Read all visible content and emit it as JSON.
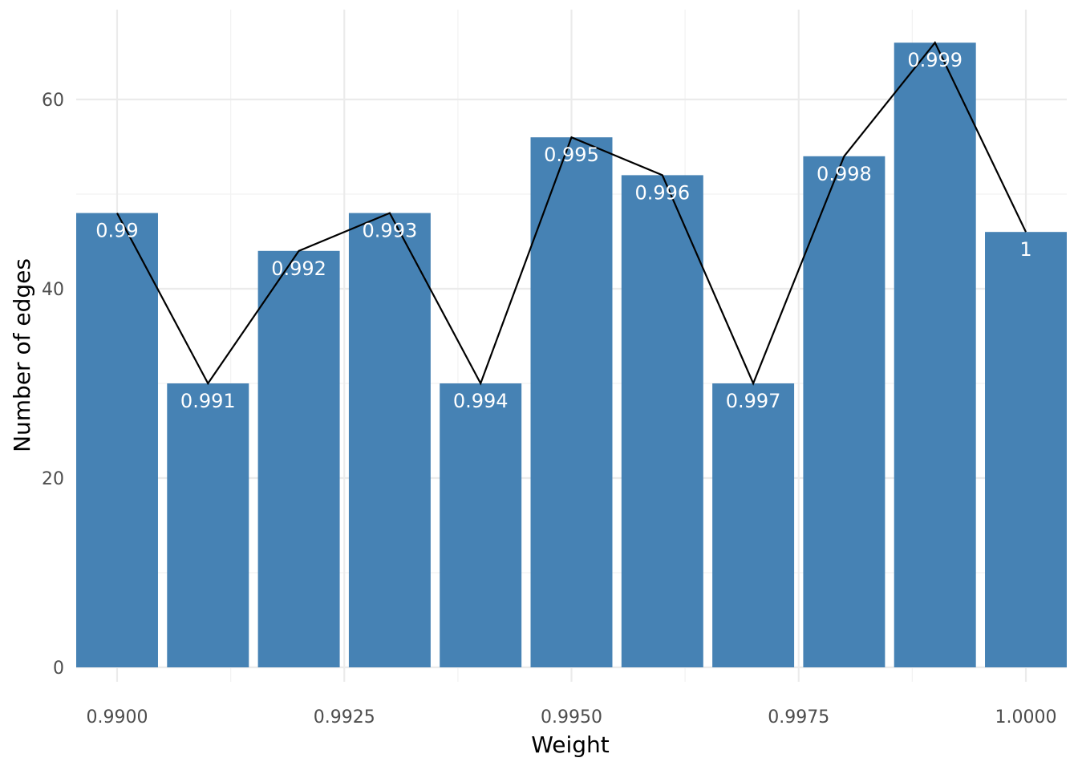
{
  "chart_data": {
    "type": "bar",
    "x": [
      0.99,
      0.991,
      0.992,
      0.993,
      0.994,
      0.995,
      0.996,
      0.997,
      0.998,
      0.999,
      1.0
    ],
    "values": [
      48,
      30,
      44,
      48,
      30,
      56,
      52,
      30,
      54,
      66,
      46
    ],
    "bar_labels": [
      "0.99",
      "0.991",
      "0.992",
      "0.993",
      "0.994",
      "0.995",
      "0.996",
      "0.997",
      "0.998",
      "0.999",
      "1"
    ],
    "overlay_line": {
      "type": "line",
      "values": [
        48,
        30,
        44,
        48,
        30,
        56,
        52,
        30,
        54,
        66,
        46
      ],
      "color": "#000000"
    },
    "xlabel": "Weight",
    "ylabel": "Number of edges",
    "x_ticks": [
      0.99,
      0.9925,
      0.995,
      0.9975,
      1.0
    ],
    "x_tick_labels": [
      "0.9900",
      "0.9925",
      "0.9950",
      "0.9975",
      "1.0000"
    ],
    "y_ticks": [
      0,
      20,
      40,
      60
    ],
    "y_tick_labels": [
      "0",
      "20",
      "40",
      "60"
    ],
    "xlim": [
      0.98955,
      1.00045
    ],
    "ylim": [
      0,
      68
    ],
    "grid": true,
    "bar_color": "#4682b4"
  }
}
